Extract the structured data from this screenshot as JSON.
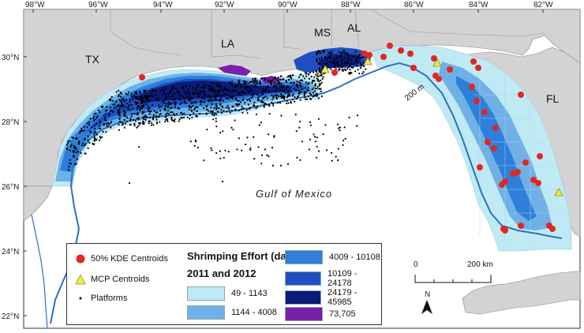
{
  "axes": {
    "lon_labels": [
      "98°W",
      "96°W",
      "94°W",
      "92°W",
      "90°W",
      "88°W",
      "86°W",
      "84°W",
      "82°W"
    ],
    "lat_labels": [
      "30°N",
      "28°N",
      "26°N",
      "24°N",
      "22°N"
    ]
  },
  "place_labels": {
    "tx": "TX",
    "la": "LA",
    "ms": "MS",
    "al": "AL",
    "fl": "FL",
    "gulf": "Gulf of Mexico",
    "isobath": "200 m"
  },
  "legend": {
    "kde": "50% KDE Centroids",
    "mcp": "MCP Centroids",
    "platforms": "Platforms",
    "title_line1": "Shrimping Effort (days)",
    "title_line2": "2011 and 2012",
    "classes": [
      {
        "label": "49 - 1143",
        "color": "#bfeaf3"
      },
      {
        "label": "1144 - 4008",
        "color": "#6fb1e6"
      },
      {
        "label": "4009 - 10108",
        "color": "#2d7fd9"
      },
      {
        "label": "10109 - 24178",
        "color": "#1f4fc0"
      },
      {
        "label": "24179 - 45985",
        "color": "#0c1a78"
      },
      {
        "label": "73,705",
        "color": "#7a1fa8"
      }
    ]
  },
  "scale_bar": {
    "zero": "0",
    "end": "200 km"
  },
  "north_arrow": "N",
  "colors": {
    "land": "#d3d3d3",
    "water": "#ffffff",
    "isobath": "#2a6fc9",
    "kde_centroid": "#e3261f",
    "mcp_centroid": "#f5ee3a",
    "platform": "#000000"
  }
}
